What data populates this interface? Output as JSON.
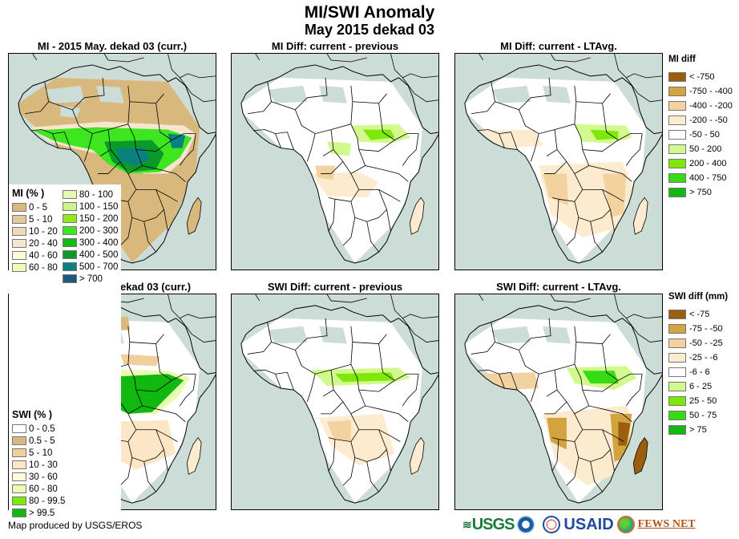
{
  "header": {
    "title": "MI/SWI Anomaly",
    "subtitle": "May 2015 dekad 03"
  },
  "panels": [
    {
      "id": "mi-current",
      "title": "MI - 2015 May. dekad 03 (curr.)",
      "kind": "mi_curr"
    },
    {
      "id": "mi-diff-prev",
      "title": "MI Diff: current - previous",
      "kind": "mi_prev"
    },
    {
      "id": "mi-diff-ltavg",
      "title": "MI Diff: current - LTAvg.",
      "kind": "mi_lta"
    },
    {
      "id": "swi-current",
      "title": "SWI - 2015 May. dekad 03 (curr.)",
      "kind": "swi_curr"
    },
    {
      "id": "swi-diff-prev",
      "title": "SWI Diff: current - previous",
      "kind": "swi_prev"
    },
    {
      "id": "swi-diff-ltavg",
      "title": "SWI Diff: current - LTAvg.",
      "kind": "swi_lta"
    }
  ],
  "legends": {
    "mi_current": {
      "title": "MI (% )",
      "col1": [
        {
          "label": "0 - 5",
          "color": "#d9b87e"
        },
        {
          "label": "5 - 10",
          "color": "#e3c89a"
        },
        {
          "label": "10 - 20",
          "color": "#efd9b8"
        },
        {
          "label": "20 - 40",
          "color": "#f6e6cf"
        },
        {
          "label": "40 - 60",
          "color": "#fdfbd6"
        },
        {
          "label": "60 - 80",
          "color": "#f2fbb5"
        }
      ],
      "col2": [
        {
          "label": "80 - 100",
          "color": "#e6f9b3"
        },
        {
          "label": "100 - 150",
          "color": "#cbf48c"
        },
        {
          "label": "150 - 200",
          "color": "#90ea1a"
        },
        {
          "label": "200 - 300",
          "color": "#3ee620"
        },
        {
          "label": "300 - 400",
          "color": "#12bb12"
        },
        {
          "label": "400 - 500",
          "color": "#0a9a2a"
        },
        {
          "label": "500 - 700",
          "color": "#0a8080"
        },
        {
          "label": "> 700",
          "color": "#1a5a80"
        }
      ]
    },
    "mi_diff": {
      "title": "MI diff",
      "items": [
        {
          "label": "< -750",
          "color": "#9a5e0c"
        },
        {
          "label": "-750 - -400",
          "color": "#d3a33f"
        },
        {
          "label": "-400 - -200",
          "color": "#f2d3a0"
        },
        {
          "label": "-200 - -50",
          "color": "#fdebd0"
        },
        {
          "label": "-50 - 50",
          "color": "#ffffff"
        },
        {
          "label": "50 - 200",
          "color": "#d2f98d"
        },
        {
          "label": "200 - 400",
          "color": "#7ee80a"
        },
        {
          "label": "400 - 750",
          "color": "#36db14"
        },
        {
          "label": "> 750",
          "color": "#10b810"
        }
      ]
    },
    "swi_current": {
      "title": "SWI (% )",
      "items": [
        {
          "label": "0 - 0.5",
          "color": "#ffffff"
        },
        {
          "label": "0.5 - 5",
          "color": "#dab97f"
        },
        {
          "label": "5 - 10",
          "color": "#f0cf9b"
        },
        {
          "label": "10 - 30",
          "color": "#fde6c6"
        },
        {
          "label": "30 - 60",
          "color": "#fdfbd8"
        },
        {
          "label": "60 - 80",
          "color": "#e8fbae"
        },
        {
          "label": "80 - 99.5",
          "color": "#7ee80a"
        },
        {
          "label": "> 99.5",
          "color": "#10b810"
        }
      ]
    },
    "swi_diff": {
      "title": "SWI diff (mm)",
      "items": [
        {
          "label": "< -75",
          "color": "#9a5e0c"
        },
        {
          "label": "-75 - -50",
          "color": "#d3a33f"
        },
        {
          "label": "-50 - -25",
          "color": "#f2d3a0"
        },
        {
          "label": "-25 - -6",
          "color": "#fdebd0"
        },
        {
          "label": "-6 - 6",
          "color": "#ffffff"
        },
        {
          "label": "6 - 25",
          "color": "#d2f98d"
        },
        {
          "label": "25 - 50",
          "color": "#7ee80a"
        },
        {
          "label": "50 - 75",
          "color": "#36db14"
        },
        {
          "label": "> 75",
          "color": "#10b810"
        }
      ]
    }
  },
  "footer": {
    "credit": "Map produced by USGS/EROS",
    "logos": [
      "USGS",
      "NOAA",
      "USAID",
      "FEWS NET"
    ]
  },
  "colors": {
    "ocean": "#ccdcd6",
    "nodata": "#ccdcd6",
    "border": "#000000"
  }
}
